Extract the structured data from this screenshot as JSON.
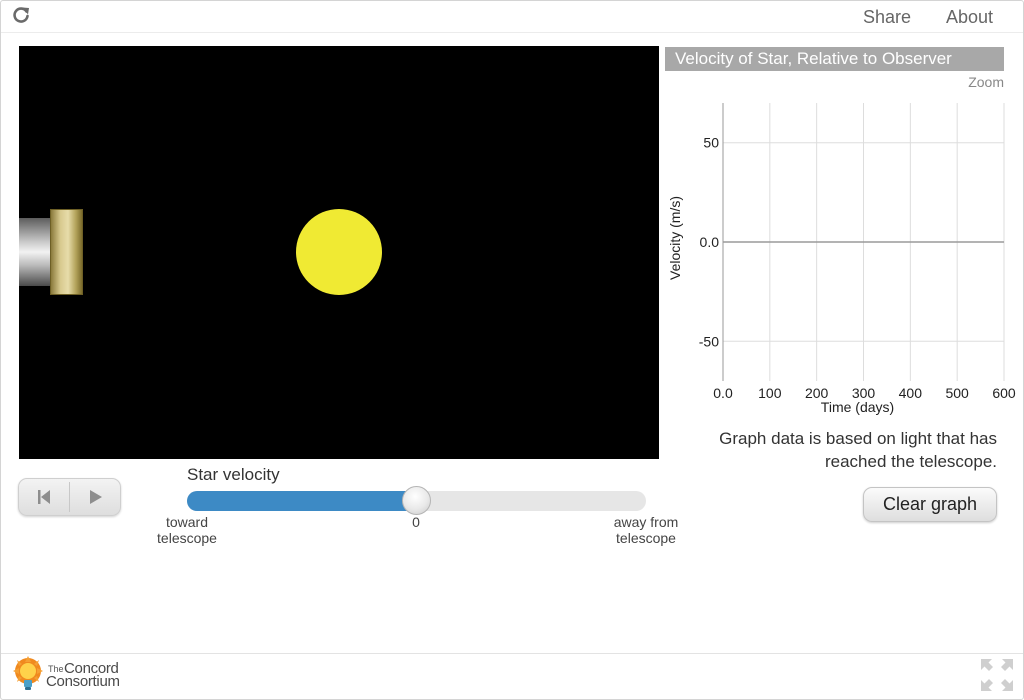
{
  "header": {
    "share_label": "Share",
    "about_label": "About"
  },
  "simulation": {
    "star_color": "#f0ea33",
    "background_color": "#000000"
  },
  "playback": {
    "reset_icon": "skip-to-start-icon",
    "play_icon": "play-icon"
  },
  "slider": {
    "label": "Star velocity",
    "value_fraction": 0.5,
    "left_caption_line1": "toward",
    "left_caption_line2": "telescope",
    "center_caption": "0",
    "right_caption_line1": "away from",
    "right_caption_line2": "telescope",
    "fill_color": "#3d8ac5"
  },
  "graph": {
    "title": "Velocity of Star, Relative to Observer",
    "zoom_label": "Zoom",
    "note": "Graph data is based on light that has reached the telescope.",
    "clear_label": "Clear graph"
  },
  "chart_data": {
    "type": "line",
    "title": "Velocity of Star, Relative to Observer",
    "xlabel": "Time (days)",
    "ylabel": "Velocity (m/s)",
    "xlim": [
      0,
      600
    ],
    "ylim": [
      -70,
      70
    ],
    "x_ticks": [
      "0.0",
      "100",
      "200",
      "300",
      "400",
      "500",
      "600"
    ],
    "y_ticks": [
      "50",
      "0.0",
      "-50"
    ],
    "y_tick_values": [
      50,
      0,
      -50
    ],
    "grid": true,
    "series": []
  },
  "footer": {
    "logo_the": "The",
    "logo_line1": "Concord",
    "logo_line2": "Consortium"
  }
}
